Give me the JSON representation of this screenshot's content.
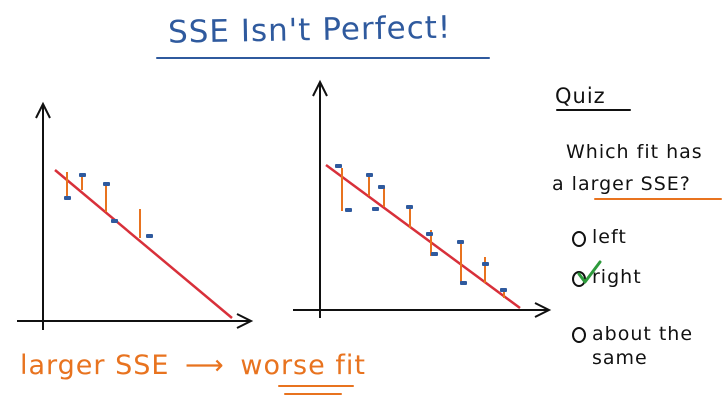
{
  "title": "SSE Isn't Perfect!",
  "quiz": {
    "heading": "Quiz",
    "question_line1": "Which fit has",
    "question_line2": "a larger SSE?",
    "options": [
      {
        "label": "left",
        "selected": false
      },
      {
        "label": "right",
        "selected": true
      },
      {
        "label": "about the same",
        "selected": false
      }
    ],
    "selected_answer": "right"
  },
  "caption": {
    "part1": "larger SSE",
    "arrow": "⟶",
    "part2": "worse",
    "part3": "fit"
  },
  "colors": {
    "title": "#2f5a9e",
    "fit_line": "#d8303a",
    "residual": "#e8731f",
    "points": "#2f5a9e",
    "check": "#2e9a3c",
    "caption": "#e8731f"
  },
  "plots": [
    {
      "name": "left",
      "points": 4
    },
    {
      "name": "right",
      "points": 8
    }
  ]
}
